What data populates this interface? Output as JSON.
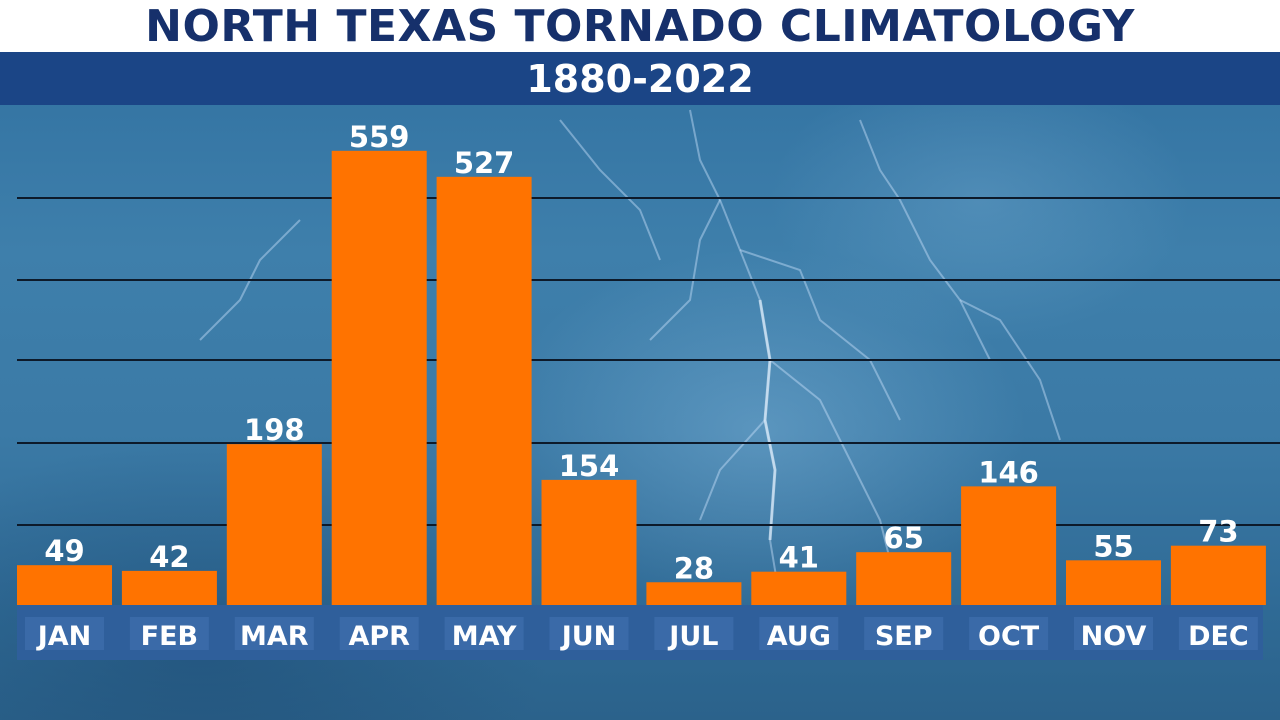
{
  "chart_data": {
    "type": "bar",
    "title": "NORTH TEXAS TORNADO CLIMATOLOGY",
    "subtitle": "1880-2022",
    "categories": [
      "JAN",
      "FEB",
      "MAR",
      "APR",
      "MAY",
      "JUN",
      "JUL",
      "AUG",
      "SEP",
      "OCT",
      "NOV",
      "DEC"
    ],
    "values": [
      49,
      42,
      198,
      559,
      527,
      154,
      28,
      41,
      65,
      146,
      55,
      73
    ],
    "xlabel": "",
    "ylabel": "",
    "ylim": [
      0,
      600
    ],
    "grid": true,
    "legend": "none",
    "colors": {
      "bar": "#ff7300",
      "category_box": "#2f5f9b",
      "title_text": "#16306b",
      "subtitle_bar": "#1b4586"
    }
  }
}
